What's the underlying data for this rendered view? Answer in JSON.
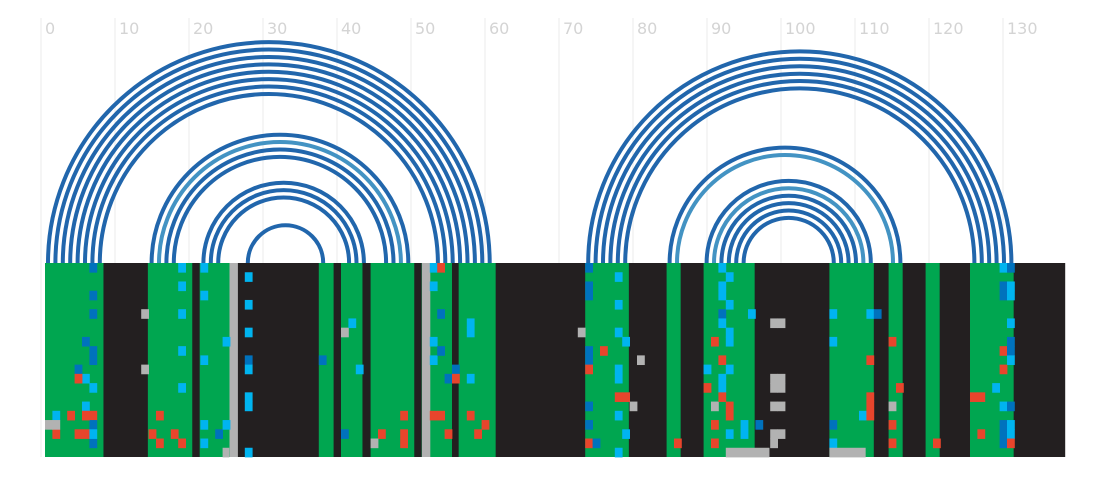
{
  "chart_data": {
    "type": "heatmap",
    "title": "",
    "xlabel": "",
    "ylabel": "",
    "xlim": [
      -1,
      138
    ],
    "x_ticks": [
      0,
      10,
      20,
      30,
      40,
      50,
      60,
      70,
      80,
      90,
      100,
      110,
      120,
      130
    ],
    "grid": true,
    "colors": {
      "paired": "#00a650",
      "unpaired": "#231f20",
      "gap": "#b2b2b2",
      "arc": "#2166ac",
      "arc_light": "#4393c3",
      "blue": "#0072bd",
      "cyan": "#00b4f0",
      "red": "#e8452c",
      "grid": "#ebebeb"
    },
    "alignment_rows": 21,
    "paired_spans": [
      [
        0,
        7.9
      ],
      [
        13.9,
        19.9
      ],
      [
        20.9,
        25.9
      ],
      [
        37,
        39
      ],
      [
        40,
        42.9
      ],
      [
        44,
        49.9
      ],
      [
        50.9,
        55
      ],
      [
        55.9,
        60.9
      ],
      [
        73,
        78.9
      ],
      [
        84,
        85.9
      ],
      [
        89,
        95.9
      ],
      [
        106,
        112
      ],
      [
        114,
        115.9
      ],
      [
        119,
        120.9
      ],
      [
        125,
        130.9
      ]
    ],
    "gap_columns": [
      25,
      51
    ],
    "dark_columns": [
      7,
      25,
      38,
      43,
      51,
      55,
      114
    ],
    "arc_groups": [
      {
        "left_start": 0,
        "right_end": 60.5,
        "count": 8,
        "spacing": 1
      },
      {
        "left_start": 14,
        "right_end": 49.5,
        "count": 4,
        "spacing": 1
      },
      {
        "left_start": 21,
        "right_end": 43.5,
        "count": 3,
        "spacing": 1
      },
      {
        "left_start": 27,
        "right_end": 38,
        "count": 1,
        "spacing": 1
      },
      {
        "left_start": 73,
        "right_end": 131,
        "count": 6,
        "spacing": 1
      },
      {
        "left_start": 84,
        "right_end": 116,
        "count": 2,
        "spacing": 1
      },
      {
        "left_start": 89,
        "right_end": 112,
        "count": 6,
        "spacing": 1
      }
    ],
    "cells": [
      {
        "x": 6,
        "y": 0,
        "c": "blue"
      },
      {
        "x": 6,
        "y": 3,
        "c": "blue"
      },
      {
        "x": 6,
        "y": 5,
        "c": "blue"
      },
      {
        "x": 6,
        "y": 9,
        "c": "blue"
      },
      {
        "x": 6,
        "y": 10,
        "c": "blue"
      },
      {
        "x": 6,
        "y": 13,
        "c": "cyan"
      },
      {
        "x": 6,
        "y": 16,
        "c": "red"
      },
      {
        "x": 6,
        "y": 17,
        "c": "blue"
      },
      {
        "x": 6,
        "y": 19,
        "c": "blue"
      },
      {
        "x": 5,
        "y": 8,
        "c": "blue"
      },
      {
        "x": 5,
        "y": 12,
        "c": "cyan"
      },
      {
        "x": 5,
        "y": 15,
        "c": "cyan"
      },
      {
        "x": 4,
        "y": 11,
        "c": "blue"
      },
      {
        "x": 4,
        "y": 12,
        "c": "red"
      },
      {
        "x": 4,
        "y": 18,
        "c": "red"
      },
      {
        "x": 3,
        "y": 16,
        "c": "red"
      },
      {
        "x": 1,
        "y": 16,
        "c": "cyan"
      },
      {
        "x": 1,
        "y": 18,
        "c": "red"
      },
      {
        "x": 0,
        "y": 17,
        "c": "gap"
      },
      {
        "x": 1,
        "y": 17,
        "c": "gap"
      },
      {
        "x": 5,
        "y": 16,
        "c": "red"
      },
      {
        "x": 5,
        "y": 18,
        "c": "red"
      },
      {
        "x": 6,
        "y": 18,
        "c": "cyan"
      },
      {
        "x": 13,
        "y": 5,
        "c": "gap"
      },
      {
        "x": 13,
        "y": 11,
        "c": "gap"
      },
      {
        "x": 15,
        "y": 16,
        "c": "red"
      },
      {
        "x": 14,
        "y": 18,
        "c": "red"
      },
      {
        "x": 15,
        "y": 19,
        "c": "red"
      },
      {
        "x": 18,
        "y": 0,
        "c": "cyan"
      },
      {
        "x": 18,
        "y": 2,
        "c": "cyan"
      },
      {
        "x": 18,
        "y": 5,
        "c": "cyan"
      },
      {
        "x": 18,
        "y": 9,
        "c": "cyan"
      },
      {
        "x": 18,
        "y": 13,
        "c": "cyan"
      },
      {
        "x": 17,
        "y": 18,
        "c": "red"
      },
      {
        "x": 18,
        "y": 19,
        "c": "red"
      },
      {
        "x": 21,
        "y": 0,
        "c": "cyan"
      },
      {
        "x": 21,
        "y": 3,
        "c": "cyan"
      },
      {
        "x": 21,
        "y": 10,
        "c": "cyan"
      },
      {
        "x": 21,
        "y": 17,
        "c": "cyan"
      },
      {
        "x": 21,
        "y": 19,
        "c": "cyan"
      },
      {
        "x": 23,
        "y": 18,
        "c": "blue"
      },
      {
        "x": 24,
        "y": 8,
        "c": "cyan"
      },
      {
        "x": 24,
        "y": 17,
        "c": "cyan"
      },
      {
        "x": 27,
        "y": 1,
        "c": "cyan"
      },
      {
        "x": 27,
        "y": 4,
        "c": "cyan"
      },
      {
        "x": 27,
        "y": 7,
        "c": "cyan"
      },
      {
        "x": 27,
        "y": 10,
        "c": "blue"
      },
      {
        "x": 27,
        "y": 11,
        "c": "cyan"
      },
      {
        "x": 27,
        "y": 14,
        "c": "cyan"
      },
      {
        "x": 27,
        "y": 15,
        "c": "cyan"
      },
      {
        "x": 27,
        "y": 20,
        "c": "cyan"
      },
      {
        "x": 37,
        "y": 10,
        "c": "blue"
      },
      {
        "x": 40,
        "y": 7,
        "c": "gap"
      },
      {
        "x": 41,
        "y": 6,
        "c": "cyan"
      },
      {
        "x": 40,
        "y": 18,
        "c": "blue"
      },
      {
        "x": 42,
        "y": 11,
        "c": "cyan"
      },
      {
        "x": 45,
        "y": 18,
        "c": "red"
      },
      {
        "x": 44,
        "y": 19,
        "c": "gap"
      },
      {
        "x": 48,
        "y": 16,
        "c": "red"
      },
      {
        "x": 48,
        "y": 18,
        "c": "red"
      },
      {
        "x": 48,
        "y": 19,
        "c": "red"
      },
      {
        "x": 52,
        "y": 0,
        "c": "cyan"
      },
      {
        "x": 52,
        "y": 2,
        "c": "cyan"
      },
      {
        "x": 52,
        "y": 8,
        "c": "cyan"
      },
      {
        "x": 52,
        "y": 10,
        "c": "cyan"
      },
      {
        "x": 52,
        "y": 16,
        "c": "red"
      },
      {
        "x": 53,
        "y": 16,
        "c": "red"
      },
      {
        "x": 53,
        "y": 0,
        "c": "red"
      },
      {
        "x": 53,
        "y": 5,
        "c": "blue"
      },
      {
        "x": 53,
        "y": 9,
        "c": "blue"
      },
      {
        "x": 54,
        "y": 12,
        "c": "blue"
      },
      {
        "x": 54,
        "y": 18,
        "c": "red"
      },
      {
        "x": 55,
        "y": 11,
        "c": "blue"
      },
      {
        "x": 55,
        "y": 12,
        "c": "red"
      },
      {
        "x": 57,
        "y": 6,
        "c": "cyan"
      },
      {
        "x": 57,
        "y": 7,
        "c": "cyan"
      },
      {
        "x": 57,
        "y": 12,
        "c": "cyan"
      },
      {
        "x": 57,
        "y": 16,
        "c": "red"
      },
      {
        "x": 58,
        "y": 18,
        "c": "red"
      },
      {
        "x": 59,
        "y": 17,
        "c": "red"
      },
      {
        "x": 72,
        "y": 7,
        "c": "gap"
      },
      {
        "x": 73,
        "y": 0,
        "c": "blue"
      },
      {
        "x": 73,
        "y": 2,
        "c": "blue"
      },
      {
        "x": 73,
        "y": 3,
        "c": "blue"
      },
      {
        "x": 73,
        "y": 9,
        "c": "blue"
      },
      {
        "x": 73,
        "y": 10,
        "c": "blue"
      },
      {
        "x": 73,
        "y": 11,
        "c": "red"
      },
      {
        "x": 73,
        "y": 15,
        "c": "blue"
      },
      {
        "x": 73,
        "y": 17,
        "c": "blue"
      },
      {
        "x": 73,
        "y": 19,
        "c": "red"
      },
      {
        "x": 74,
        "y": 19,
        "c": "blue"
      },
      {
        "x": 75,
        "y": 9,
        "c": "red"
      },
      {
        "x": 77,
        "y": 1,
        "c": "cyan"
      },
      {
        "x": 77,
        "y": 4,
        "c": "cyan"
      },
      {
        "x": 77,
        "y": 7,
        "c": "cyan"
      },
      {
        "x": 77,
        "y": 11,
        "c": "cyan"
      },
      {
        "x": 77,
        "y": 12,
        "c": "cyan"
      },
      {
        "x": 77,
        "y": 14,
        "c": "red"
      },
      {
        "x": 78,
        "y": 14,
        "c": "red"
      },
      {
        "x": 77,
        "y": 16,
        "c": "cyan"
      },
      {
        "x": 78,
        "y": 8,
        "c": "cyan"
      },
      {
        "x": 78,
        "y": 18,
        "c": "cyan"
      },
      {
        "x": 77,
        "y": 20,
        "c": "cyan"
      },
      {
        "x": 79,
        "y": 15,
        "c": "gap"
      },
      {
        "x": 80,
        "y": 10,
        "c": "gap"
      },
      {
        "x": 85,
        "y": 19,
        "c": "red"
      },
      {
        "x": 89,
        "y": 11,
        "c": "cyan"
      },
      {
        "x": 89,
        "y": 13,
        "c": "red"
      },
      {
        "x": 90,
        "y": 8,
        "c": "red"
      },
      {
        "x": 90,
        "y": 15,
        "c": "gap"
      },
      {
        "x": 90,
        "y": 17,
        "c": "red"
      },
      {
        "x": 90,
        "y": 19,
        "c": "red"
      },
      {
        "x": 91,
        "y": 0,
        "c": "cyan"
      },
      {
        "x": 91,
        "y": 2,
        "c": "cyan"
      },
      {
        "x": 91,
        "y": 3,
        "c": "cyan"
      },
      {
        "x": 91,
        "y": 5,
        "c": "blue"
      },
      {
        "x": 91,
        "y": 6,
        "c": "cyan"
      },
      {
        "x": 91,
        "y": 10,
        "c": "red"
      },
      {
        "x": 91,
        "y": 12,
        "c": "cyan"
      },
      {
        "x": 91,
        "y": 13,
        "c": "cyan"
      },
      {
        "x": 91,
        "y": 14,
        "c": "red"
      },
      {
        "x": 92,
        "y": 1,
        "c": "cyan"
      },
      {
        "x": 92,
        "y": 4,
        "c": "cyan"
      },
      {
        "x": 92,
        "y": 7,
        "c": "cyan"
      },
      {
        "x": 92,
        "y": 8,
        "c": "cyan"
      },
      {
        "x": 92,
        "y": 11,
        "c": "cyan"
      },
      {
        "x": 92,
        "y": 15,
        "c": "red"
      },
      {
        "x": 92,
        "y": 16,
        "c": "red"
      },
      {
        "x": 92,
        "y": 18,
        "c": "cyan"
      },
      {
        "x": 94,
        "y": 17,
        "c": "cyan"
      },
      {
        "x": 94,
        "y": 18,
        "c": "cyan"
      },
      {
        "x": 95,
        "y": 5,
        "c": "cyan"
      },
      {
        "x": 96,
        "y": 17,
        "c": "blue"
      },
      {
        "x": 99,
        "y": 6,
        "c": "gap"
      },
      {
        "x": 98,
        "y": 6,
        "c": "gap"
      },
      {
        "x": 98,
        "y": 12,
        "c": "gap"
      },
      {
        "x": 99,
        "y": 12,
        "c": "gap"
      },
      {
        "x": 98,
        "y": 13,
        "c": "gap"
      },
      {
        "x": 99,
        "y": 13,
        "c": "gap"
      },
      {
        "x": 98,
        "y": 15,
        "c": "gap"
      },
      {
        "x": 99,
        "y": 15,
        "c": "gap"
      },
      {
        "x": 98,
        "y": 18,
        "c": "gap"
      },
      {
        "x": 99,
        "y": 18,
        "c": "gap"
      },
      {
        "x": 98,
        "y": 19,
        "c": "gap"
      },
      {
        "x": 106,
        "y": 5,
        "c": "cyan"
      },
      {
        "x": 106,
        "y": 8,
        "c": "cyan"
      },
      {
        "x": 106,
        "y": 17,
        "c": "blue"
      },
      {
        "x": 106,
        "y": 19,
        "c": "cyan"
      },
      {
        "x": 110,
        "y": 16,
        "c": "cyan"
      },
      {
        "x": 111,
        "y": 5,
        "c": "cyan"
      },
      {
        "x": 111,
        "y": 10,
        "c": "red"
      },
      {
        "x": 111,
        "y": 14,
        "c": "red"
      },
      {
        "x": 111,
        "y": 15,
        "c": "red"
      },
      {
        "x": 111,
        "y": 16,
        "c": "red"
      },
      {
        "x": 112,
        "y": 5,
        "c": "blue"
      },
      {
        "x": 114,
        "y": 8,
        "c": "red"
      },
      {
        "x": 114,
        "y": 15,
        "c": "gap"
      },
      {
        "x": 114,
        "y": 17,
        "c": "red"
      },
      {
        "x": 114,
        "y": 19,
        "c": "red"
      },
      {
        "x": 115,
        "y": 13,
        "c": "red"
      },
      {
        "x": 120,
        "y": 19,
        "c": "red"
      },
      {
        "x": 125,
        "y": 14,
        "c": "red"
      },
      {
        "x": 126,
        "y": 14,
        "c": "red"
      },
      {
        "x": 126,
        "y": 18,
        "c": "red"
      },
      {
        "x": 128,
        "y": 13,
        "c": "cyan"
      },
      {
        "x": 129,
        "y": 0,
        "c": "cyan"
      },
      {
        "x": 129,
        "y": 2,
        "c": "blue"
      },
      {
        "x": 129,
        "y": 3,
        "c": "blue"
      },
      {
        "x": 129,
        "y": 9,
        "c": "red"
      },
      {
        "x": 129,
        "y": 11,
        "c": "red"
      },
      {
        "x": 129,
        "y": 15,
        "c": "cyan"
      },
      {
        "x": 129,
        "y": 17,
        "c": "blue"
      },
      {
        "x": 129,
        "y": 18,
        "c": "blue"
      },
      {
        "x": 129,
        "y": 19,
        "c": "blue"
      },
      {
        "x": 130,
        "y": 0,
        "c": "blue"
      },
      {
        "x": 130,
        "y": 2,
        "c": "cyan"
      },
      {
        "x": 130,
        "y": 3,
        "c": "cyan"
      },
      {
        "x": 130,
        "y": 6,
        "c": "cyan"
      },
      {
        "x": 130,
        "y": 8,
        "c": "blue"
      },
      {
        "x": 130,
        "y": 9,
        "c": "blue"
      },
      {
        "x": 130,
        "y": 10,
        "c": "cyan"
      },
      {
        "x": 130,
        "y": 15,
        "c": "blue"
      },
      {
        "x": 130,
        "y": 17,
        "c": "cyan"
      },
      {
        "x": 130,
        "y": 18,
        "c": "cyan"
      },
      {
        "x": 130,
        "y": 19,
        "c": "red"
      }
    ],
    "gap_bars": [
      {
        "x0": 92,
        "x1": 97.9,
        "y": 20
      },
      {
        "x0": 106,
        "x1": 110.9,
        "y": 20
      },
      {
        "x0": 24,
        "x1": 24.9,
        "y": 20
      }
    ]
  }
}
